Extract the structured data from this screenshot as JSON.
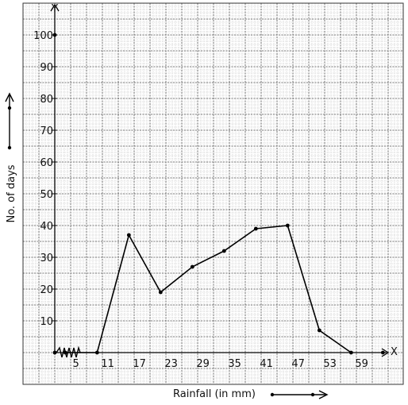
{
  "chart_data": {
    "type": "line",
    "title": "",
    "xlabel": "Rainfall (in mm)",
    "ylabel": "No. of days",
    "x_axis_letter": "X",
    "y_axis_letter": "Y",
    "x_tick_labels": [
      "5",
      "11",
      "17",
      "23",
      "29",
      "35",
      "41",
      "47",
      "53",
      "59"
    ],
    "y_tick_labels": [
      "10",
      "20",
      "30",
      "40",
      "50",
      "60",
      "70",
      "80",
      "90",
      "100"
    ],
    "y_ticks": [
      10,
      20,
      30,
      40,
      50,
      60,
      70,
      80,
      90,
      100
    ],
    "xlim": [
      -1,
      64
    ],
    "ylim": [
      0,
      100
    ],
    "axis_break": "zigzag near origin on x-axis",
    "grid": true,
    "series": [
      {
        "x": [
          2,
          8,
          14,
          20,
          26,
          32,
          38,
          44,
          50,
          56
        ],
        "y": [
          0,
          0,
          37,
          19,
          27,
          32,
          39,
          40,
          7,
          0
        ]
      }
    ],
    "points_on_axis": [
      0,
      62
    ],
    "colors": {
      "grid_minor": "#c8c8c8",
      "grid_major": "#555555",
      "line": "#000000"
    }
  }
}
